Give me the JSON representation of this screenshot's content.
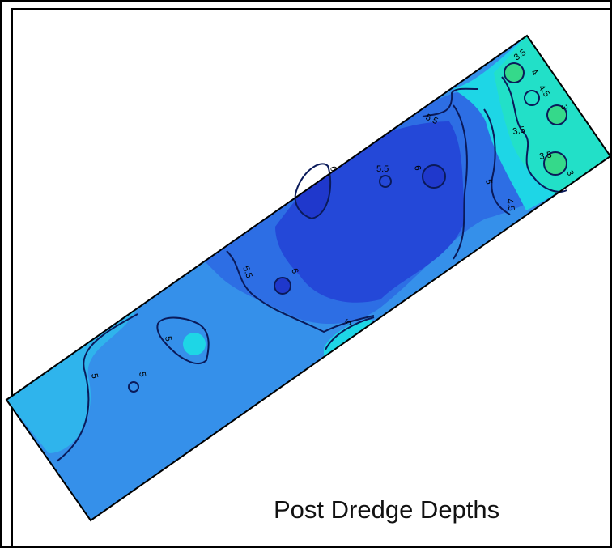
{
  "title": "Post Dredge Depths",
  "contour_labels": [
    "3.5",
    "4",
    "4.5",
    "3",
    "5.5",
    "3.5",
    "3.5",
    "3",
    "5.5",
    "6",
    "6",
    "5",
    "4.5",
    "5.5",
    "6",
    "5",
    "5",
    "5",
    "5"
  ],
  "colors": {
    "frame": "#000000",
    "depth_3": "#35d98a",
    "depth_3_5": "#22e0c8",
    "depth_4": "#1ed6e6",
    "depth_4_5": "#2fb4ec",
    "depth_5": "#3590ea",
    "depth_5_5": "#2d6ee4",
    "depth_6": "#2448d8",
    "depth_6_plus": "#1f38cc",
    "contour": "#0a1a5a"
  }
}
